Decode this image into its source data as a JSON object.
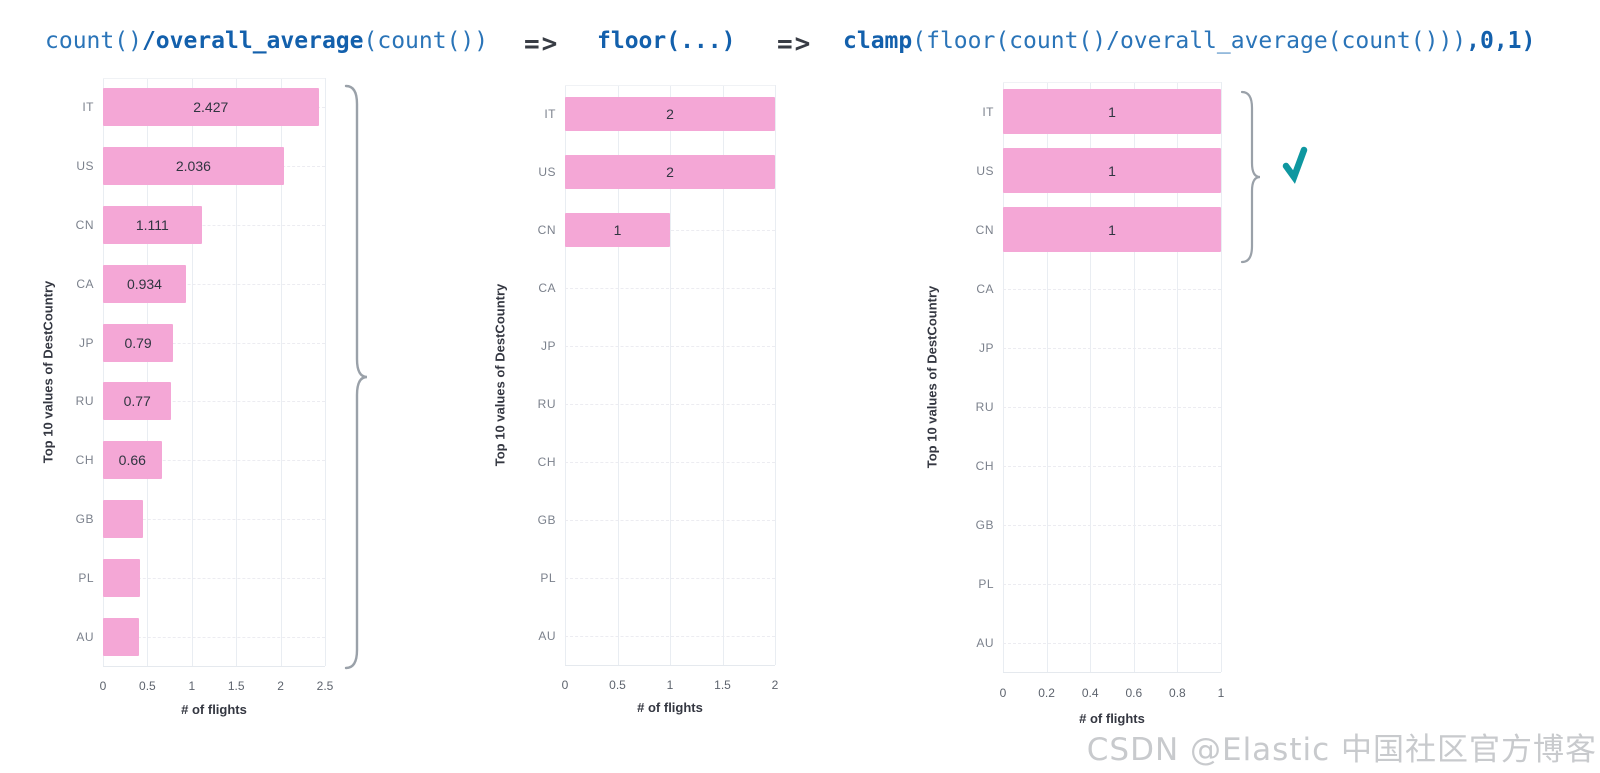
{
  "header": {
    "arrow_label": "=>",
    "expressions": [
      {
        "segments": [
          {
            "text": "count()",
            "bold": false
          },
          {
            "text": "/overall_average",
            "bold": true
          },
          {
            "text": "(count())",
            "bold": false
          }
        ]
      },
      {
        "segments": [
          {
            "text": "floor(...)",
            "bold": true
          }
        ]
      },
      {
        "segments": [
          {
            "text": "clamp",
            "bold": true
          },
          {
            "text": "(floor(count()/overall_average(count()))",
            "bold": false
          },
          {
            "text": ",0,1)",
            "bold": true
          }
        ]
      }
    ]
  },
  "chart_data": [
    {
      "type": "bar",
      "orientation": "horizontal",
      "title": "count()/overall_average(count())",
      "ylabel": "Top 10 values of DestCountry",
      "xlabel": "# of flights",
      "categories": [
        "IT",
        "US",
        "CN",
        "CA",
        "JP",
        "RU",
        "CH",
        "GB",
        "PL",
        "AU"
      ],
      "values": [
        2.427,
        2.036,
        1.111,
        0.934,
        0.79,
        0.77,
        0.66,
        0.45,
        0.42,
        0.4
      ],
      "bar_labels": [
        "2.427",
        "2.036",
        "1.111",
        "0.934",
        "0.79",
        "0.77",
        "0.66",
        "",
        "",
        ""
      ],
      "xlim": [
        0,
        2.5
      ],
      "x_tick_values": [
        0,
        0.5,
        1,
        1.5,
        2,
        2.5
      ],
      "x_tick_labels": [
        "0",
        "0.5",
        "1",
        "1.5",
        "2",
        "2.5"
      ],
      "grid": true,
      "legend": "none"
    },
    {
      "type": "bar",
      "orientation": "horizontal",
      "title": "floor(...)",
      "ylabel": "Top 10 values of DestCountry",
      "xlabel": "# of flights",
      "categories": [
        "IT",
        "US",
        "CN",
        "CA",
        "JP",
        "RU",
        "CH",
        "GB",
        "PL",
        "AU"
      ],
      "values": [
        2,
        2,
        1,
        0,
        0,
        0,
        0,
        0,
        0,
        0
      ],
      "bar_labels": [
        "2",
        "2",
        "1",
        "",
        "",
        "",
        "",
        "",
        "",
        ""
      ],
      "xlim": [
        0,
        2
      ],
      "x_tick_values": [
        0,
        0.5,
        1,
        1.5,
        2
      ],
      "x_tick_labels": [
        "0",
        "0.5",
        "1",
        "1.5",
        "2"
      ],
      "grid": true,
      "legend": "none"
    },
    {
      "type": "bar",
      "orientation": "horizontal",
      "title": "clamp(floor(count()/overall_average(count())),0,1)",
      "ylabel": "Top 10 values of DestCountry",
      "xlabel": "# of flights",
      "categories": [
        "IT",
        "US",
        "CN",
        "CA",
        "JP",
        "RU",
        "CH",
        "GB",
        "PL",
        "AU"
      ],
      "values": [
        1,
        1,
        1,
        0,
        0,
        0,
        0,
        0,
        0,
        0
      ],
      "bar_labels": [
        "1",
        "1",
        "1",
        "",
        "",
        "",
        "",
        "",
        "",
        ""
      ],
      "xlim": [
        0,
        1
      ],
      "x_tick_values": [
        0,
        0.2,
        0.4,
        0.6,
        0.8,
        1
      ],
      "x_tick_labels": [
        "0",
        "0.2",
        "0.4",
        "0.6",
        "0.8",
        "1"
      ],
      "grid": true,
      "legend": "none"
    }
  ],
  "annotations": {
    "watermark": "CSDN @Elastic 中国社区官方博客"
  },
  "colors": {
    "bar": "#F4A7D6",
    "code_regular": "#2a74b8",
    "code_bold": "#1360ac",
    "arrow": "#383c44",
    "axis_title": "#343741",
    "category_label": "#7b818c",
    "tick_label": "#5d636d",
    "value_label": "#2f3540",
    "gridline": "#e9edf2",
    "brace": "#9aa1a9",
    "checkmark": "#0e97a0",
    "watermark": "#c8cacd"
  }
}
